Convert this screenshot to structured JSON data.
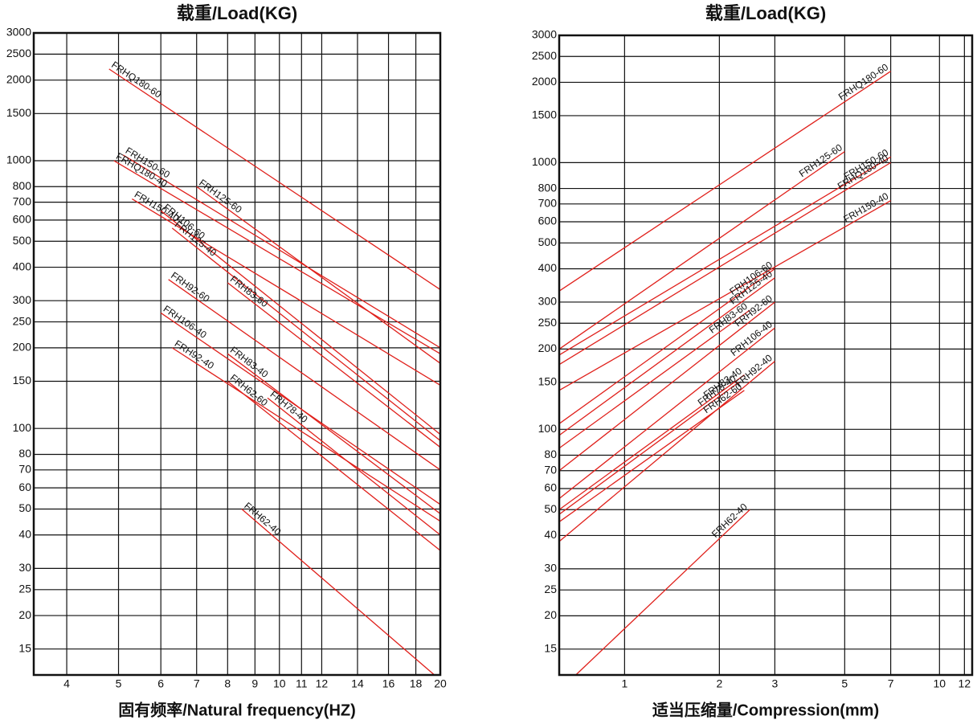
{
  "chart_data": [
    {
      "type": "line",
      "title": "载重/Load(KG)",
      "xlabel": "固有频率/Natural frequency(HZ)",
      "xscale": "log",
      "yscale": "log",
      "grid": true,
      "xlim": [
        3.47,
        20
      ],
      "ylim": [
        12,
        3000
      ],
      "xticks": [
        4,
        5,
        6,
        7,
        8,
        9,
        10,
        11,
        12,
        14,
        16,
        18,
        20
      ],
      "yticks": [
        15,
        20,
        25,
        30,
        40,
        50,
        60,
        70,
        80,
        100,
        150,
        200,
        250,
        300,
        400,
        500,
        600,
        700,
        800,
        1000,
        1500,
        2000,
        2500,
        3000
      ],
      "series": [
        {
          "name": "FRHQ180-60",
          "color": "#e0201b",
          "x": [
            4.8,
            20
          ],
          "values": [
            2200,
            330
          ]
        },
        {
          "name": "FRH150-60",
          "color": "#e0201b",
          "x": [
            5.1,
            20
          ],
          "values": [
            1050,
            200
          ]
        },
        {
          "name": "FRHQ180-40",
          "color": "#e0201b",
          "x": [
            4.9,
            20
          ],
          "values": [
            1000,
            190
          ]
        },
        {
          "name": "FRH125-60",
          "color": "#e0201b",
          "x": [
            7,
            20
          ],
          "values": [
            800,
            175
          ]
        },
        {
          "name": "FRH150-40",
          "color": "#e0201b",
          "x": [
            5.3,
            20
          ],
          "values": [
            720,
            145
          ]
        },
        {
          "name": "FRH106-60",
          "color": "#e0201b",
          "x": [
            6,
            20
          ],
          "values": [
            650,
            95
          ]
        },
        {
          "name": "FRH125-40",
          "color": "#e0201b",
          "x": [
            6.3,
            20
          ],
          "values": [
            560,
            90
          ]
        },
        {
          "name": "FRH83-60",
          "color": "#e0201b",
          "x": [
            8,
            20
          ],
          "values": [
            350,
            85
          ]
        },
        {
          "name": "FRH92-60",
          "color": "#e0201b",
          "x": [
            6.2,
            20
          ],
          "values": [
            360,
            70
          ]
        },
        {
          "name": "FRH106-40",
          "color": "#e0201b",
          "x": [
            6,
            20
          ],
          "values": [
            270,
            52
          ]
        },
        {
          "name": "FRH83-40",
          "color": "#e0201b",
          "x": [
            8,
            20
          ],
          "values": [
            190,
            48
          ]
        },
        {
          "name": "FRH92-40",
          "color": "#e0201b",
          "x": [
            6.3,
            20
          ],
          "values": [
            200,
            45
          ]
        },
        {
          "name": "FRH78-40",
          "color": "#e0201b",
          "x": [
            9.5,
            20
          ],
          "values": [
            130,
            40
          ]
        },
        {
          "name": "FRH62-60",
          "color": "#e0201b",
          "x": [
            8,
            20
          ],
          "values": [
            150,
            35
          ]
        },
        {
          "name": "FRH62-40",
          "color": "#e0201b",
          "x": [
            8.5,
            19.5
          ],
          "values": [
            50,
            12
          ]
        }
      ]
    },
    {
      "type": "line",
      "title": "载重/Load(KG)",
      "xlabel": "适当压缩量/Compression(mm)",
      "xscale": "log",
      "yscale": "log",
      "grid": true,
      "xlim": [
        0.62,
        12.7
      ],
      "ylim": [
        12,
        3000
      ],
      "xticks": [
        1,
        2,
        3,
        5,
        7,
        10,
        12
      ],
      "yticks": [
        15,
        20,
        25,
        30,
        40,
        50,
        60,
        70,
        80,
        100,
        150,
        200,
        250,
        300,
        400,
        500,
        600,
        700,
        800,
        1000,
        1500,
        2000,
        2500,
        3000
      ],
      "series": [
        {
          "name": "FRHQ180-60",
          "color": "#e0201b",
          "x": [
            0.62,
            7
          ],
          "values": [
            330,
            2200
          ]
        },
        {
          "name": "FRH125-60",
          "color": "#e0201b",
          "x": [
            0.62,
            5
          ],
          "values": [
            200,
            1100
          ]
        },
        {
          "name": "FRH150-60",
          "color": "#e0201b",
          "x": [
            0.62,
            7
          ],
          "values": [
            190,
            1050
          ]
        },
        {
          "name": "FRHQ180-40",
          "color": "#e0201b",
          "x": [
            0.62,
            7
          ],
          "values": [
            175,
            1000
          ]
        },
        {
          "name": "FRH150-40",
          "color": "#e0201b",
          "x": [
            0.62,
            7
          ],
          "values": [
            140,
            720
          ]
        },
        {
          "name": "FRH106-60",
          "color": "#e0201b",
          "x": [
            0.62,
            3
          ],
          "values": [
            105,
            400
          ]
        },
        {
          "name": "FRH125-40",
          "color": "#e0201b",
          "x": [
            0.62,
            3
          ],
          "values": [
            95,
            370
          ]
        },
        {
          "name": "FRH83-60",
          "color": "#e0201b",
          "x": [
            0.62,
            2.5
          ],
          "values": [
            85,
            280
          ]
        },
        {
          "name": "FRH92-60",
          "color": "#e0201b",
          "x": [
            0.62,
            3
          ],
          "values": [
            70,
            300
          ]
        },
        {
          "name": "FRH106-40",
          "color": "#e0201b",
          "x": [
            0.62,
            3
          ],
          "values": [
            55,
            240
          ]
        },
        {
          "name": "FRH83-40",
          "color": "#e0201b",
          "x": [
            0.62,
            2.4
          ],
          "values": [
            50,
            160
          ]
        },
        {
          "name": "FRH78-40",
          "color": "#e0201b",
          "x": [
            0.62,
            2.3
          ],
          "values": [
            48,
            150
          ]
        },
        {
          "name": "FRH62-60",
          "color": "#e0201b",
          "x": [
            0.62,
            2.4
          ],
          "values": [
            45,
            140
          ]
        },
        {
          "name": "FRH92-40",
          "color": "#e0201b",
          "x": [
            0.62,
            3
          ],
          "values": [
            38,
            180
          ]
        },
        {
          "name": "FRH62-40",
          "color": "#e0201b",
          "x": [
            0.7,
            2.5
          ],
          "values": [
            12,
            50
          ]
        }
      ]
    }
  ]
}
